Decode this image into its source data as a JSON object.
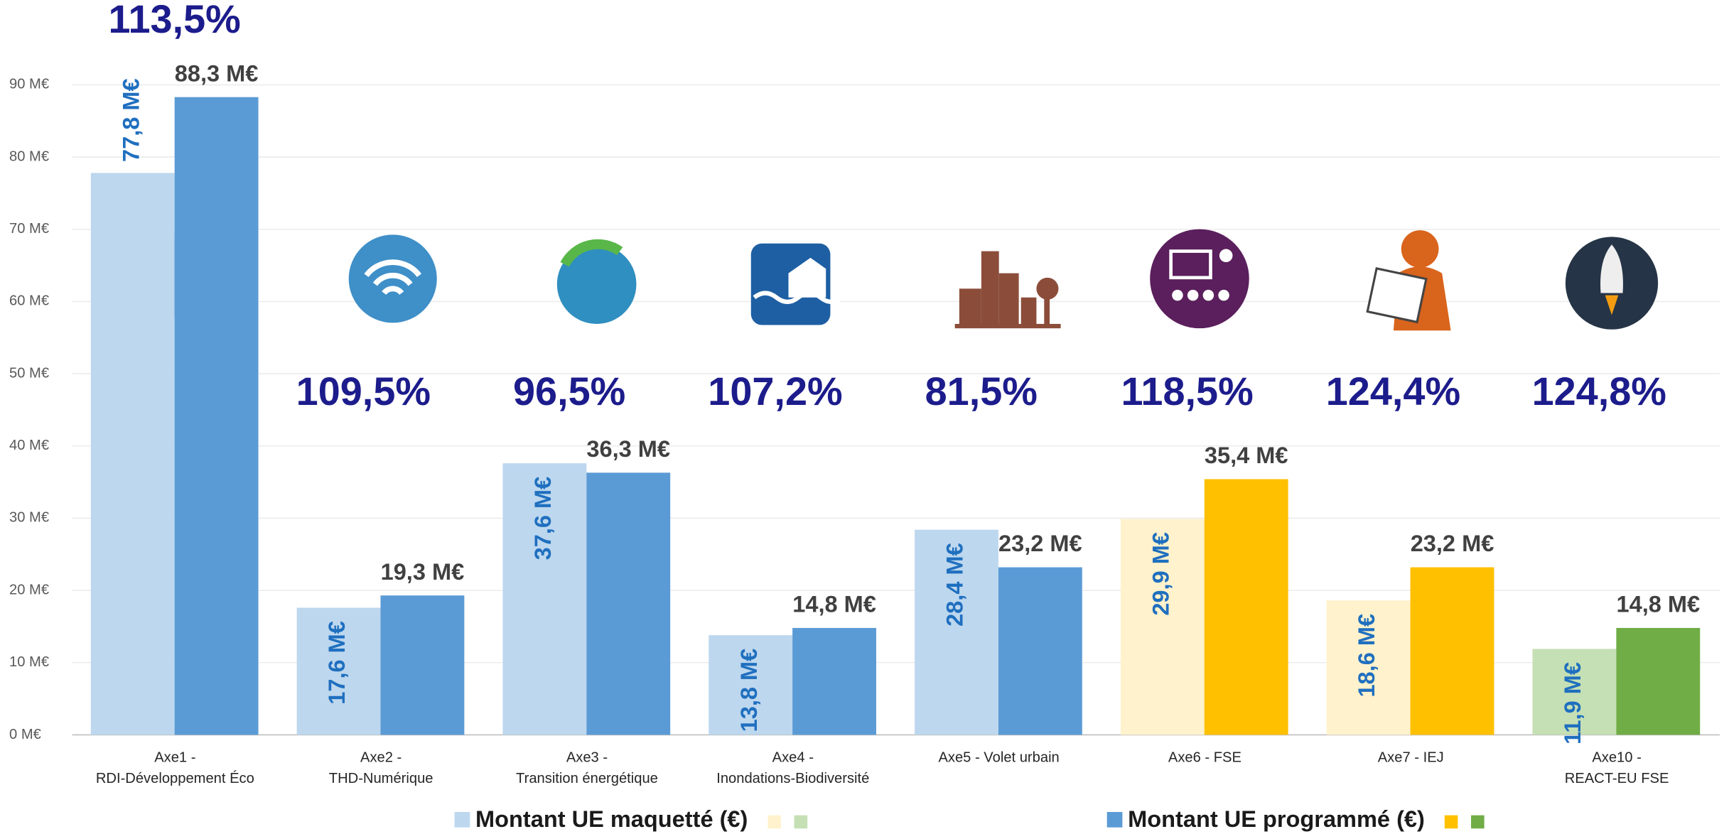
{
  "chart_data": {
    "type": "bar",
    "categories": [
      [
        "Axe1 -",
        "RDI-Développement Éco"
      ],
      [
        "Axe2 -",
        "THD-Numérique"
      ],
      [
        "Axe3 -",
        "Transition énergétique"
      ],
      [
        "Axe4 -",
        "Inondations-Biodiversité"
      ],
      [
        "Axe5 - Volet urbain"
      ],
      [
        "Axe6 - FSE"
      ],
      [
        "Axe7 - IEJ"
      ],
      [
        "Axe10 -",
        "REACT-EU FSE"
      ]
    ],
    "series": [
      {
        "name": "Montant UE maquetté (€)",
        "colors": [
          "#bdd7ee",
          "#bdd7ee",
          "#bdd7ee",
          "#bdd7ee",
          "#bdd7ee",
          "#fff2cc",
          "#fff2cc",
          "#c5e0b4"
        ],
        "values": [
          77.8,
          17.6,
          37.6,
          13.8,
          28.4,
          29.9,
          18.6,
          11.9
        ],
        "value_labels": [
          "77,8 M€",
          "17,6 M€",
          "37,6 M€",
          "13,8 M€",
          "28,4 M€",
          "29,9 M€",
          "18,6 M€",
          "11,9 M€"
        ]
      },
      {
        "name": "Montant UE programmé (€)",
        "colors": [
          "#5b9bd5",
          "#5b9bd5",
          "#5b9bd5",
          "#5b9bd5",
          "#5b9bd5",
          "#ffc000",
          "#ffc000",
          "#70ad47"
        ],
        "values": [
          88.3,
          19.3,
          36.3,
          14.8,
          23.2,
          35.4,
          23.2,
          14.8
        ],
        "value_labels": [
          "88,3 M€",
          "19,3 M€",
          "36,3 M€",
          "14,8 M€",
          "23,2 M€",
          "35,4 M€",
          "23,2 M€",
          "14,8 M€"
        ]
      }
    ],
    "ratios": [
      113.5,
      109.5,
      96.5,
      107.2,
      81.5,
      118.5,
      124.4,
      124.8
    ],
    "ratio_labels": [
      "113,5%",
      "109,5%",
      "96,5%",
      "107,2%",
      "81,5%",
      "118,5%",
      "124,4%",
      "124,8%"
    ],
    "ylim": [
      0,
      90
    ],
    "yticks": [
      {
        "value": 0,
        "label": "0 M€"
      },
      {
        "value": 10,
        "label": "10 M€"
      },
      {
        "value": 20,
        "label": "20 M€"
      },
      {
        "value": 30,
        "label": "30 M€"
      },
      {
        "value": 40,
        "label": "40 M€"
      },
      {
        "value": 50,
        "label": "50 M€"
      },
      {
        "value": 60,
        "label": "60 M€"
      },
      {
        "value": 70,
        "label": "70 M€"
      },
      {
        "value": 80,
        "label": "80 M€"
      },
      {
        "value": 90,
        "label": "90 M€"
      }
    ],
    "grid": true
  }
}
